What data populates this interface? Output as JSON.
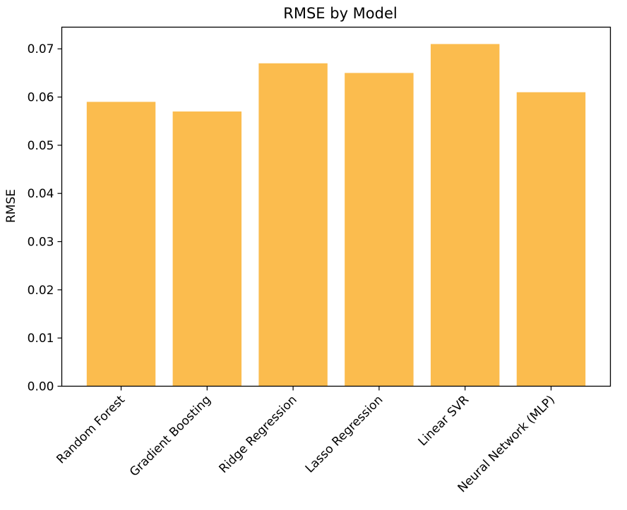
{
  "chart_data": {
    "type": "bar",
    "title": "RMSE by Model",
    "xlabel": "",
    "ylabel": "RMSE",
    "categories": [
      "Random Forest",
      "Gradient Boosting",
      "Ridge Regression",
      "Lasso Regression",
      "Linear SVR",
      "Neural Network (MLP)"
    ],
    "values": [
      0.059,
      0.057,
      0.067,
      0.065,
      0.071,
      0.061
    ],
    "ylim": [
      0,
      0.0745
    ],
    "yticks": [
      0.0,
      0.01,
      0.02,
      0.03,
      0.04,
      0.05,
      0.06,
      0.07
    ],
    "ytick_labels": [
      "0.00",
      "0.01",
      "0.02",
      "0.03",
      "0.04",
      "0.05",
      "0.06",
      "0.07"
    ],
    "bar_color": "#FBBC4E",
    "grid": false,
    "legend": "none"
  }
}
